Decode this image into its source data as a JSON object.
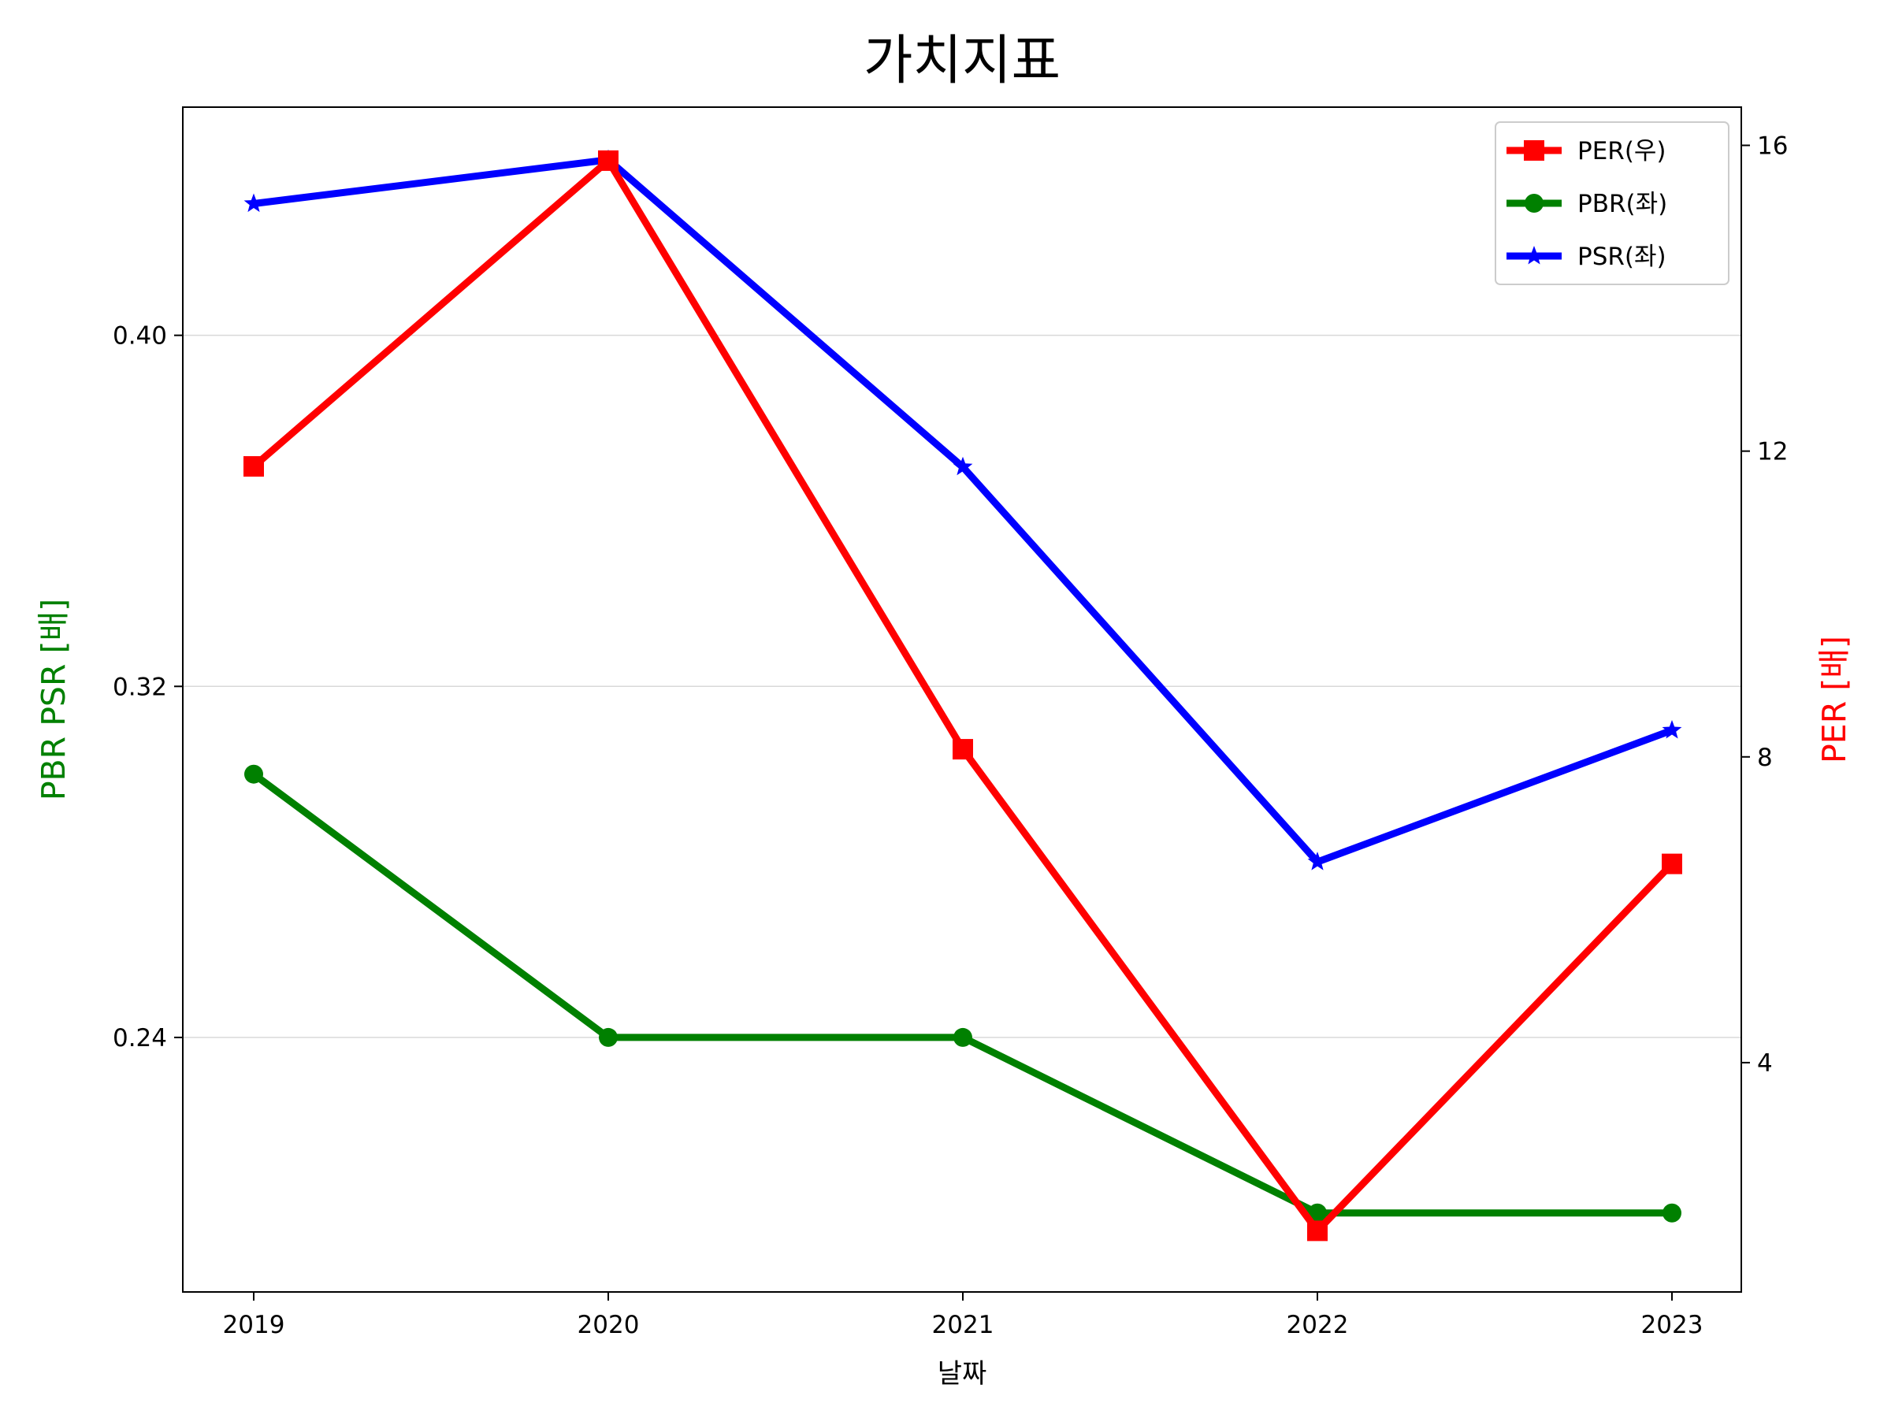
{
  "chart_data": {
    "type": "line",
    "title": "가치지표",
    "xlabel": "날짜",
    "ylabel_left": "PBR PSR [배]",
    "ylabel_right": "PER [배]",
    "ylabel_left_color": "#008000",
    "ylabel_right_color": "#ff0000",
    "categories": [
      "2019",
      "2020",
      "2021",
      "2022",
      "2023"
    ],
    "left_axis": {
      "ylim": [
        0.182,
        0.452
      ],
      "ticks": [
        0.24,
        0.32,
        0.4
      ],
      "tick_labels": [
        "0.24",
        "0.32",
        "0.40"
      ]
    },
    "right_axis": {
      "ylim": [
        1.0,
        16.5
      ],
      "ticks": [
        4,
        8,
        12,
        16
      ],
      "tick_labels": [
        "4",
        "8",
        "12",
        "16"
      ]
    },
    "grid": "horizontal",
    "legend_position": "top-right",
    "series": [
      {
        "name": "PER(우)",
        "axis": "right",
        "color": "#ff0000",
        "marker": "square",
        "values": [
          11.8,
          15.8,
          8.1,
          1.8,
          6.6
        ]
      },
      {
        "name": "PBR(좌)",
        "axis": "left",
        "color": "#008000",
        "marker": "circle",
        "values": [
          0.3,
          0.24,
          0.24,
          0.2,
          0.2
        ]
      },
      {
        "name": "PSR(좌)",
        "axis": "left",
        "color": "#0000ff",
        "marker": "star",
        "values": [
          0.43,
          0.44,
          0.37,
          0.28,
          0.31
        ]
      }
    ]
  }
}
